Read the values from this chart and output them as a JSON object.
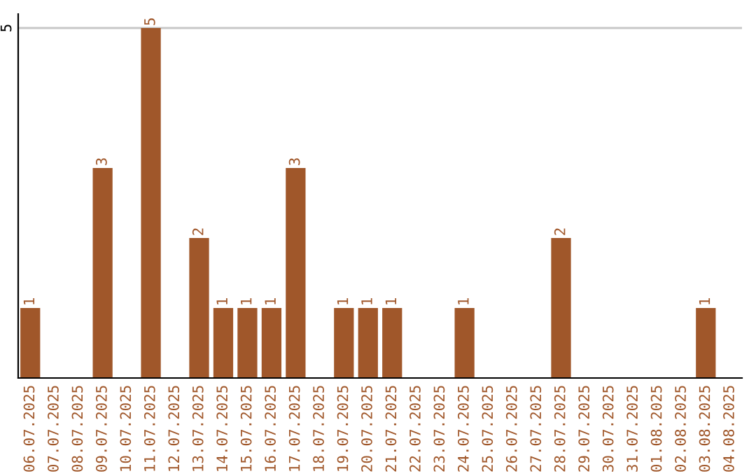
{
  "chart_data": {
    "type": "bar",
    "categories": [
      "06.07.2025",
      "07.07.2025",
      "08.07.2025",
      "09.07.2025",
      "10.07.2025",
      "11.07.2025",
      "12.07.2025",
      "13.07.2025",
      "14.07.2025",
      "15.07.2025",
      "16.07.2025",
      "17.07.2025",
      "18.07.2025",
      "19.07.2025",
      "20.07.2025",
      "21.07.2025",
      "22.07.2025",
      "23.07.2025",
      "24.07.2025",
      "25.07.2025",
      "26.07.2025",
      "27.07.2025",
      "28.07.2025",
      "29.07.2025",
      "30.07.2025",
      "31.07.2025",
      "01.08.2025",
      "02.08.2025",
      "03.08.2025",
      "04.08.2025"
    ],
    "values": [
      1,
      0,
      0,
      3,
      0,
      5,
      0,
      2,
      1,
      1,
      1,
      3,
      0,
      1,
      1,
      1,
      0,
      0,
      1,
      0,
      0,
      0,
      2,
      0,
      0,
      0,
      0,
      0,
      1,
      0
    ],
    "value_labels": [
      "1",
      null,
      null,
      "3",
      null,
      "5",
      null,
      "2",
      "1",
      "1",
      "1",
      "3",
      null,
      "1",
      "1",
      "1",
      null,
      null,
      "1",
      null,
      null,
      null,
      "2",
      null,
      null,
      null,
      null,
      null,
      "1",
      null
    ],
    "color": "#a0572a",
    "ylim": [
      0,
      5.2
    ],
    "yticks": [
      5
    ],
    "grid": "y",
    "legend": false
  }
}
